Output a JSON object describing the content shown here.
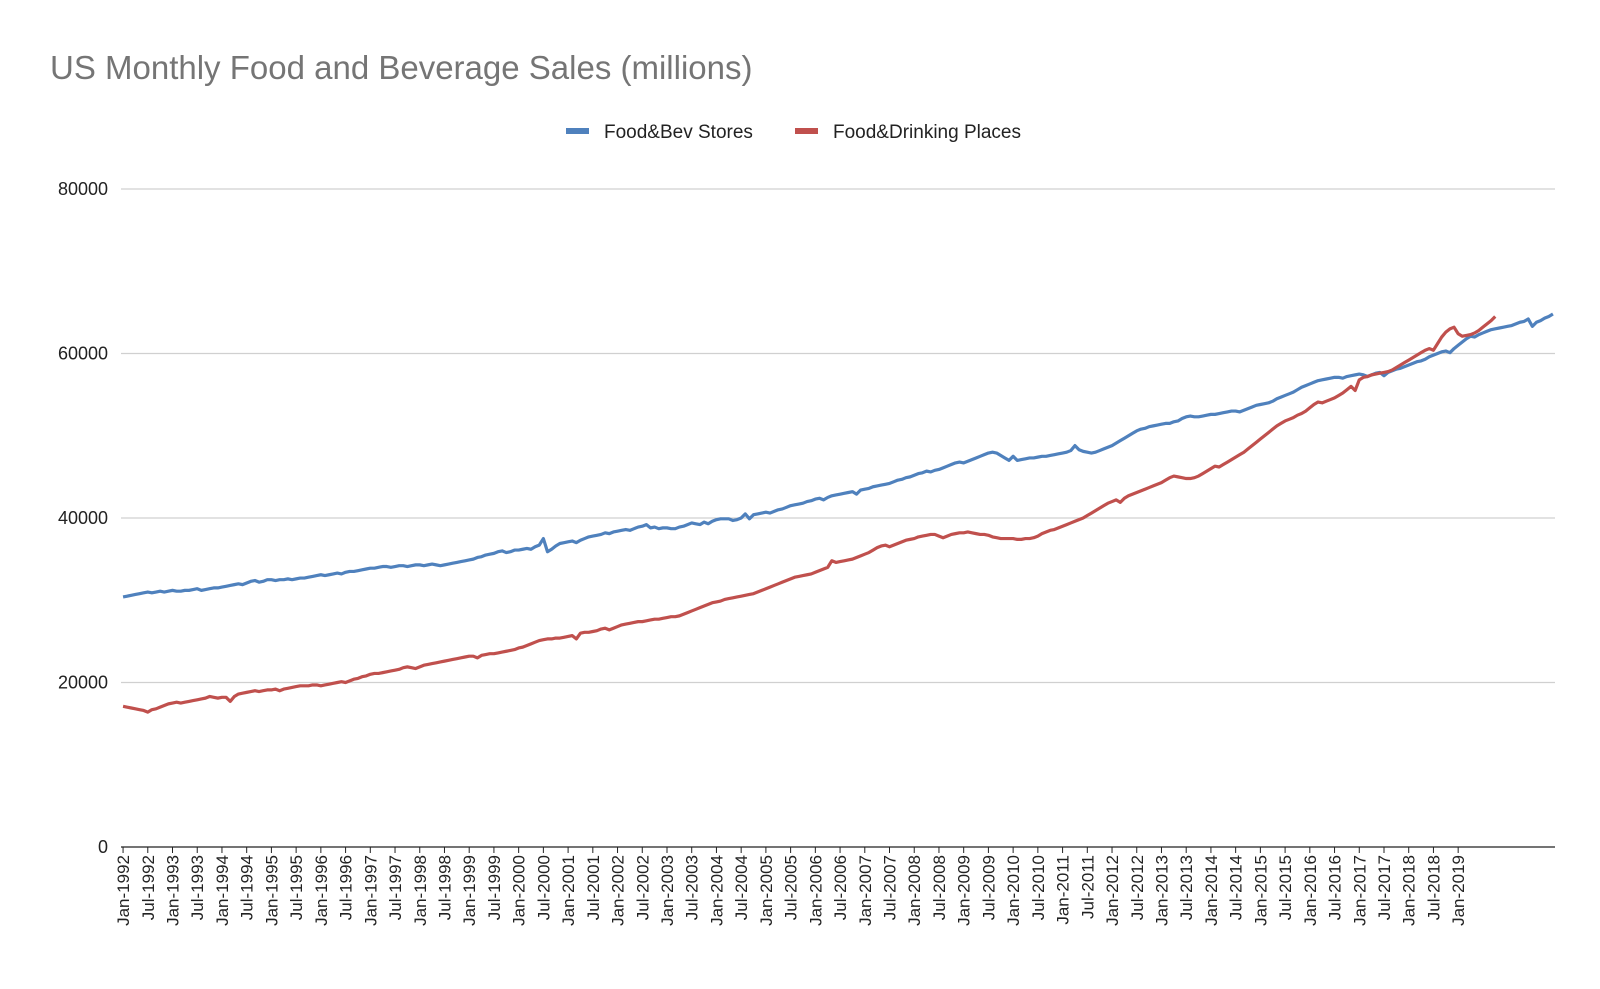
{
  "chart_data": {
    "type": "line",
    "title": "US Monthly Food and Beverage Sales (millions)",
    "xlabel": "",
    "ylabel": "",
    "ylim": [
      0,
      80000
    ],
    "yticks": [
      0,
      20000,
      40000,
      60000,
      80000
    ],
    "grid": true,
    "legend_position": "top",
    "x_start": "Jan-1992",
    "x_end": "Dec-2019",
    "x_step_months": 1,
    "tick_labels": [
      "Jan-1992",
      "Jul-1992",
      "Jan-1993",
      "Jul-1993",
      "Jan-1994",
      "Jul-1994",
      "Jan-1995",
      "Jul-1995",
      "Jan-1996",
      "Jul-1996",
      "Jan-1997",
      "Jul-1997",
      "Jan-1998",
      "Jul-1998",
      "Jan-1999",
      "Jul-1999",
      "Jan-2000",
      "Jul-2000",
      "Jan-2001",
      "Jul-2001",
      "Jan-2002",
      "Jul-2002",
      "Jan-2003",
      "Jul-2003",
      "Jan-2004",
      "Jul-2004",
      "Jan-2005",
      "Jul-2005",
      "Jan-2006",
      "Jul-2006",
      "Jan-2007",
      "Jul-2007",
      "Jan-2008",
      "Jul-2008",
      "Jan-2009",
      "Jul-2009",
      "Jan-2010",
      "Jul-2010",
      "Jan-2011",
      "Jul-2011",
      "Jan-2012",
      "Jul-2012",
      "Jan-2013",
      "Jul-2013",
      "Jan-2014",
      "Jul-2014",
      "Jan-2015",
      "Jul-2015",
      "Jan-2016",
      "Jul-2016",
      "Jan-2017",
      "Jul-2017",
      "Jan-2018",
      "Jul-2018",
      "Jan-2019"
    ],
    "series": [
      {
        "name": "Food&Bev Stores",
        "color": "#4f81bd",
        "values": [
          30400,
          30500,
          30600,
          30700,
          30800,
          30900,
          31000,
          30900,
          31000,
          31100,
          31000,
          31100,
          31200,
          31100,
          31100,
          31200,
          31200,
          31300,
          31400,
          31200,
          31300,
          31400,
          31500,
          31500,
          31600,
          31700,
          31800,
          31900,
          32000,
          31900,
          32100,
          32300,
          32400,
          32200,
          32300,
          32500,
          32500,
          32400,
          32500,
          32500,
          32600,
          32500,
          32600,
          32700,
          32700,
          32800,
          32900,
          33000,
          33100,
          33000,
          33100,
          33200,
          33300,
          33200,
          33400,
          33500,
          33500,
          33600,
          33700,
          33800,
          33900,
          33900,
          34000,
          34100,
          34100,
          34000,
          34100,
          34200,
          34200,
          34100,
          34200,
          34300,
          34300,
          34200,
          34300,
          34400,
          34300,
          34200,
          34300,
          34400,
          34500,
          34600,
          34700,
          34800,
          34900,
          35000,
          35200,
          35300,
          35500,
          35600,
          35700,
          35900,
          36000,
          35800,
          35900,
          36100,
          36100,
          36200,
          36300,
          36200,
          36500,
          36700,
          37500,
          35900,
          36200,
          36600,
          36900,
          37000,
          37100,
          37200,
          37000,
          37300,
          37500,
          37700,
          37800,
          37900,
          38000,
          38200,
          38100,
          38300,
          38400,
          38500,
          38600,
          38500,
          38700,
          38900,
          39000,
          39200,
          38800,
          38900,
          38700,
          38800,
          38800,
          38700,
          38700,
          38900,
          39000,
          39200,
          39400,
          39300,
          39200,
          39500,
          39300,
          39600,
          39800,
          39900,
          39900,
          39900,
          39700,
          39800,
          40000,
          40500,
          39900,
          40400,
          40500,
          40600,
          40700,
          40600,
          40800,
          41000,
          41100,
          41300,
          41500,
          41600,
          41700,
          41800,
          42000,
          42100,
          42300,
          42400,
          42200,
          42500,
          42700,
          42800,
          42900,
          43000,
          43100,
          43200,
          42900,
          43400,
          43500,
          43600,
          43800,
          43900,
          44000,
          44100,
          44200,
          44400,
          44600,
          44700,
          44900,
          45000,
          45200,
          45400,
          45500,
          45700,
          45600,
          45800,
          45900,
          46100,
          46300,
          46500,
          46700,
          46800,
          46700,
          46900,
          47100,
          47300,
          47500,
          47700,
          47900,
          48000,
          47900,
          47600,
          47300,
          47000,
          47500,
          47000,
          47100,
          47200,
          47300,
          47300,
          47400,
          47500,
          47500,
          47600,
          47700,
          47800,
          47900,
          48000,
          48200,
          48800,
          48300,
          48100,
          48000,
          47900,
          48000,
          48200,
          48400,
          48600,
          48800,
          49100,
          49400,
          49700,
          50000,
          50300,
          50600,
          50800,
          50900,
          51100,
          51200,
          51300,
          51400,
          51500,
          51500,
          51700,
          51800,
          52100,
          52300,
          52400,
          52300,
          52300,
          52400,
          52500,
          52600,
          52600,
          52700,
          52800,
          52900,
          53000,
          53000,
          52900,
          53100,
          53300,
          53500,
          53700,
          53800,
          53900,
          54000,
          54200,
          54500,
          54700,
          54900,
          55100,
          55300,
          55600,
          55900,
          56100,
          56300,
          56500,
          56700,
          56800,
          56900,
          57000,
          57100,
          57100,
          57000,
          57200,
          57300,
          57400,
          57500,
          57400,
          57200,
          57400,
          57600,
          57700,
          57300,
          57700,
          57900,
          58100,
          58200,
          58400,
          58600,
          58800,
          59000,
          59100,
          59300,
          59600,
          59800,
          60000,
          60200,
          60300,
          60100,
          60600,
          61000,
          61400,
          61800,
          62100,
          62000,
          62300,
          62500,
          62700,
          62900,
          63000,
          63100,
          63200,
          63300,
          63400,
          63600,
          63800,
          63900,
          64200,
          63300,
          63800,
          64000,
          64300,
          64500,
          64800
        ]
      },
      {
        "name": "Food&Drinking Places",
        "color": "#c0504d",
        "values": [
          17100,
          17000,
          16900,
          16800,
          16700,
          16600,
          16400,
          16700,
          16800,
          17000,
          17200,
          17400,
          17500,
          17600,
          17500,
          17600,
          17700,
          17800,
          17900,
          18000,
          18100,
          18300,
          18200,
          18100,
          18200,
          18200,
          17700,
          18300,
          18600,
          18700,
          18800,
          18900,
          19000,
          18900,
          19000,
          19100,
          19100,
          19200,
          19000,
          19200,
          19300,
          19400,
          19500,
          19600,
          19600,
          19600,
          19700,
          19700,
          19600,
          19700,
          19800,
          19900,
          20000,
          20100,
          20000,
          20200,
          20400,
          20500,
          20700,
          20800,
          21000,
          21100,
          21100,
          21200,
          21300,
          21400,
          21500,
          21600,
          21800,
          21900,
          21800,
          21700,
          21900,
          22100,
          22200,
          22300,
          22400,
          22500,
          22600,
          22700,
          22800,
          22900,
          23000,
          23100,
          23200,
          23200,
          23000,
          23300,
          23400,
          23500,
          23500,
          23600,
          23700,
          23800,
          23900,
          24000,
          24200,
          24300,
          24500,
          24700,
          24900,
          25100,
          25200,
          25300,
          25300,
          25400,
          25400,
          25500,
          25600,
          25700,
          25300,
          26000,
          26100,
          26100,
          26200,
          26300,
          26500,
          26600,
          26400,
          26600,
          26800,
          27000,
          27100,
          27200,
          27300,
          27400,
          27400,
          27500,
          27600,
          27700,
          27700,
          27800,
          27900,
          28000,
          28000,
          28100,
          28300,
          28500,
          28700,
          28900,
          29100,
          29300,
          29500,
          29700,
          29800,
          29900,
          30100,
          30200,
          30300,
          30400,
          30500,
          30600,
          30700,
          30800,
          31000,
          31200,
          31400,
          31600,
          31800,
          32000,
          32200,
          32400,
          32600,
          32800,
          32900,
          33000,
          33100,
          33200,
          33400,
          33600,
          33800,
          34000,
          34800,
          34600,
          34700,
          34800,
          34900,
          35000,
          35200,
          35400,
          35600,
          35800,
          36100,
          36400,
          36600,
          36700,
          36500,
          36700,
          36900,
          37100,
          37300,
          37400,
          37500,
          37700,
          37800,
          37900,
          38000,
          38000,
          37800,
          37600,
          37800,
          38000,
          38100,
          38200,
          38200,
          38300,
          38200,
          38100,
          38000,
          38000,
          37900,
          37700,
          37600,
          37500,
          37500,
          37500,
          37500,
          37400,
          37400,
          37500,
          37500,
          37600,
          37800,
          38100,
          38300,
          38500,
          38600,
          38800,
          39000,
          39200,
          39400,
          39600,
          39800,
          40000,
          40300,
          40600,
          40900,
          41200,
          41500,
          41800,
          42000,
          42200,
          41900,
          42400,
          42700,
          42900,
          43100,
          43300,
          43500,
          43700,
          43900,
          44100,
          44300,
          44600,
          44900,
          45100,
          45000,
          44900,
          44800,
          44800,
          44900,
          45100,
          45400,
          45700,
          46000,
          46300,
          46200,
          46500,
          46800,
          47100,
          47400,
          47700,
          48000,
          48400,
          48800,
          49200,
          49600,
          50000,
          50400,
          50800,
          51200,
          51500,
          51800,
          52000,
          52200,
          52500,
          52700,
          53000,
          53400,
          53800,
          54100,
          54000,
          54200,
          54400,
          54600,
          54900,
          55200,
          55600,
          56000,
          55500,
          56800,
          57100,
          57200,
          57400,
          57500,
          57600,
          57700,
          57800,
          58000,
          58300,
          58600,
          58900,
          59200,
          59500,
          59800,
          60100,
          60400,
          60600,
          60400,
          61200,
          62000,
          62600,
          63000,
          63200,
          62400,
          62100,
          62200,
          62300,
          62500,
          62800,
          63200,
          63600,
          64000,
          64500
        ]
      }
    ]
  }
}
